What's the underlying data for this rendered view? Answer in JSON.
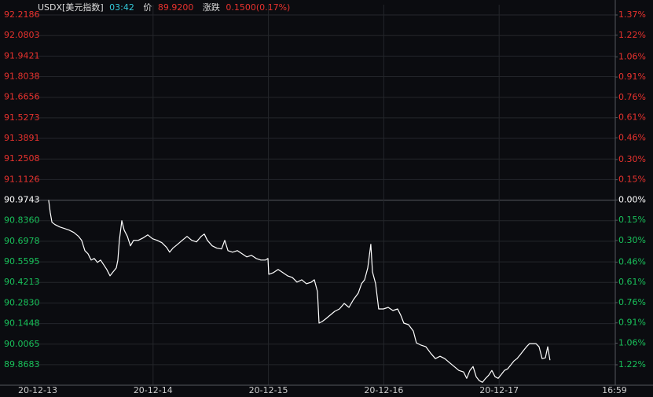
{
  "chart_data": {
    "type": "line",
    "title": "USDX[美元指数]",
    "header": {
      "time": "03:42",
      "price_label": "价",
      "price": "89.9200",
      "change_label": "涨跌",
      "change": "0.1500(0.17%)"
    },
    "up_color": "#e8322e",
    "down_color": "#19c05a",
    "flat_color": "#ffffff",
    "line_color": "#ffffff",
    "time_color": "#33c8d8",
    "grid": true,
    "xlim": [
      -0.327,
      5.007
    ],
    "xticks": [
      {
        "value": 0,
        "label": "20-12-13"
      },
      {
        "value": 1,
        "label": "20-12-14"
      },
      {
        "value": 2,
        "label": "20-12-15"
      },
      {
        "value": 3,
        "label": "20-12-16"
      },
      {
        "value": 4,
        "label": "20-12-17"
      },
      {
        "value": 5,
        "label": "16:59"
      }
    ],
    "ylim": [
      89.7305,
      92.2875
    ],
    "yticks": [
      92.2186,
      92.0803,
      91.9421,
      91.8038,
      91.6656,
      91.5273,
      91.3891,
      91.2508,
      91.1126,
      90.9743,
      {
        "value": 90.836,
        "label": "90.8360"
      },
      90.6978,
      90.5595,
      90.4213,
      {
        "value": 90.283,
        "label": "90.2830"
      },
      90.1448,
      90.0065,
      89.8683
    ],
    "y2lim": [
      -1.3714,
      1.4457
    ],
    "y2ticks": [
      {
        "value": 1.37,
        "label": "1.37%"
      },
      {
        "value": 1.22,
        "label": "1.22%"
      },
      {
        "value": 1.06,
        "label": "1.06%"
      },
      {
        "value": 0.91,
        "label": "0.91%"
      },
      {
        "value": 0.76,
        "label": "0.76%"
      },
      {
        "value": 0.61,
        "label": "0.61%"
      },
      {
        "value": 0.46,
        "label": "0.46%"
      },
      {
        "value": 0.3,
        "label": "0.30%"
      },
      {
        "value": 0.15,
        "label": "0.15%"
      },
      {
        "value": 0,
        "label": "0.00%"
      },
      {
        "value": -0.15,
        "label": "0.15%"
      },
      {
        "value": -0.3,
        "label": "0.30%"
      },
      {
        "value": -0.46,
        "label": "0.46%"
      },
      {
        "value": -0.61,
        "label": "0.61%"
      },
      {
        "value": -0.76,
        "label": "0.76%"
      },
      {
        "value": -0.91,
        "label": "0.91%"
      },
      {
        "value": -1.06,
        "label": "1.06%"
      },
      {
        "value": -1.22,
        "label": "1.22%"
      }
    ],
    "x": [
      0.095,
      0.109,
      0.123,
      0.15,
      0.191,
      0.232,
      0.272,
      0.313,
      0.354,
      0.381,
      0.409,
      0.436,
      0.463,
      0.49,
      0.518,
      0.545,
      0.572,
      0.599,
      0.627,
      0.654,
      0.681,
      0.695,
      0.708,
      0.729,
      0.749,
      0.777,
      0.804,
      0.831,
      0.872,
      0.913,
      0.954,
      0.995,
      1.035,
      1.076,
      1.117,
      1.144,
      1.172,
      1.213,
      1.253,
      1.294,
      1.335,
      1.376,
      1.417,
      1.444,
      1.471,
      1.512,
      1.553,
      1.594,
      1.621,
      1.649,
      1.689,
      1.73,
      1.771,
      1.812,
      1.853,
      1.894,
      1.935,
      1.975,
      1.996,
      2.003,
      2.044,
      2.084,
      2.125,
      2.166,
      2.207,
      2.248,
      2.289,
      2.33,
      2.371,
      2.398,
      2.425,
      2.439,
      2.466,
      2.493,
      2.534,
      2.575,
      2.616,
      2.657,
      2.698,
      2.738,
      2.779,
      2.807,
      2.834,
      2.861,
      2.888,
      2.902,
      2.929,
      2.956,
      2.997,
      3.038,
      3.079,
      3.12,
      3.147,
      3.174,
      3.215,
      3.256,
      3.283,
      3.324,
      3.365,
      3.406,
      3.447,
      3.488,
      3.529,
      3.569,
      3.61,
      3.651,
      3.692,
      3.719,
      3.747,
      3.774,
      3.801,
      3.828,
      3.856,
      3.883,
      3.91,
      3.937,
      3.965,
      3.992,
      4.019,
      4.046,
      4.074,
      4.101,
      4.128,
      4.155,
      4.183,
      4.21,
      4.237,
      4.264,
      4.292,
      4.319,
      4.346,
      4.373,
      4.401,
      4.421,
      4.441
    ],
    "values": [
      90.9743,
      90.8895,
      90.8259,
      90.81,
      90.7941,
      90.7835,
      90.7729,
      90.757,
      90.7306,
      90.7041,
      90.6352,
      90.614,
      90.5716,
      90.5822,
      90.5557,
      90.5716,
      90.5398,
      90.508,
      90.4656,
      90.4921,
      90.5186,
      90.5716,
      90.7041,
      90.8365,
      90.7729,
      90.7306,
      90.667,
      90.7041,
      90.7041,
      90.72,
      90.7411,
      90.7147,
      90.7041,
      90.6882,
      90.6564,
      90.6246,
      90.6511,
      90.6776,
      90.7041,
      90.7306,
      90.7041,
      90.6935,
      90.7306,
      90.7464,
      90.7041,
      90.667,
      90.6511,
      90.6458,
      90.7041,
      90.6352,
      90.6246,
      90.6352,
      90.614,
      90.5928,
      90.6034,
      90.5822,
      90.5716,
      90.5716,
      90.5822,
      90.4762,
      90.4868,
      90.508,
      90.4868,
      90.4656,
      90.455,
      90.4232,
      90.4391,
      90.4126,
      90.4232,
      90.4391,
      90.3596,
      90.1477,
      90.1583,
      90.1742,
      90.2007,
      90.2272,
      90.2431,
      90.2801,
      90.2536,
      90.3066,
      90.349,
      90.4126,
      90.4391,
      90.5186,
      90.6776,
      90.4921,
      90.4126,
      90.2431,
      90.2431,
      90.2536,
      90.2325,
      90.2431,
      90.2007,
      90.1477,
      90.1371,
      90.0947,
      90.0152,
      89.9993,
      89.9887,
      89.9463,
      89.9092,
      89.9251,
      89.9092,
      89.8827,
      89.8562,
      89.8297,
      89.8191,
      89.7767,
      89.8297,
      89.8562,
      89.7873,
      89.7609,
      89.7503,
      89.7767,
      89.7979,
      89.8297,
      89.7873,
      89.7767,
      89.8032,
      89.8297,
      89.8403,
      89.8668,
      89.8933,
      89.9092,
      89.9357,
      89.9622,
      89.9887,
      90.0099,
      90.0099,
      90.0099,
      89.9887,
      89.9092,
      89.9145,
      89.9887,
      89.8986
    ]
  }
}
